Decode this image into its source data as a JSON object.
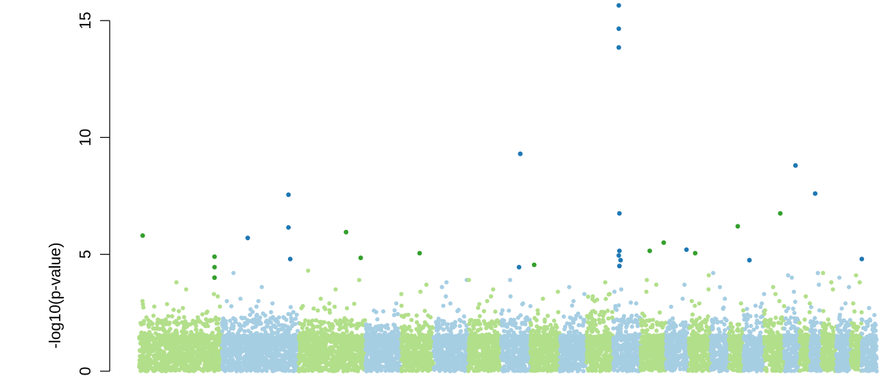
{
  "chart_data": {
    "type": "scatter",
    "title": "",
    "xlabel": "",
    "ylabel": "-log10(p-value)",
    "ylim": [
      0,
      16
    ],
    "y_ticks": [
      0,
      5,
      10,
      15
    ],
    "y_tick_labels": [
      "0",
      "5",
      "10",
      "15"
    ],
    "x_axis_shown": false,
    "colors": {
      "light_green": "#b2df8a",
      "light_blue": "#a6cee3",
      "dark_green": "#33a02c",
      "dark_blue": "#1f78b4"
    },
    "chromosomes": [
      {
        "band": "green",
        "base_max": 2.0,
        "top": [
          3.3,
          3.8,
          3.5,
          3.2,
          3.0
        ]
      },
      {
        "band": "blue",
        "base_max": 2.1,
        "top": [
          3.0,
          3.6,
          4.2,
          2.9,
          3.1
        ]
      },
      {
        "band": "green",
        "base_max": 2.0,
        "top": [
          4.3,
          3.5,
          3.9,
          3.1,
          2.9
        ]
      },
      {
        "band": "blue",
        "base_max": 1.8,
        "top": [
          2.9,
          2.6,
          2.4
        ]
      },
      {
        "band": "green",
        "base_max": 1.8,
        "top": [
          3.7,
          3.3,
          2.8,
          3.4
        ]
      },
      {
        "band": "blue",
        "base_max": 2.0,
        "top": [
          3.9,
          3.6,
          3.2,
          3.8
        ]
      },
      {
        "band": "green",
        "base_max": 2.0,
        "top": [
          3.9,
          3.5,
          3.2,
          3.0
        ]
      },
      {
        "band": "blue",
        "base_max": 2.0,
        "top": [
          3.9,
          3.2,
          2.9
        ]
      },
      {
        "band": "green",
        "base_max": 1.8,
        "top": [
          3.4,
          3.1,
          2.6
        ]
      },
      {
        "band": "blue",
        "base_max": 2.2,
        "top": [
          3.6,
          3.3,
          3.0
        ]
      },
      {
        "band": "green",
        "base_max": 2.4,
        "top": [
          3.8,
          3.3,
          3.0,
          3.2
        ]
      },
      {
        "band": "blue",
        "base_max": 2.1,
        "top": [
          3.5,
          3.4,
          2.9
        ]
      },
      {
        "band": "green",
        "base_max": 2.0,
        "top": [
          3.9,
          3.7,
          3.4
        ]
      },
      {
        "band": "blue",
        "base_max": 1.9,
        "top": [
          3.7,
          3.1
        ]
      },
      {
        "band": "green",
        "base_max": 2.0,
        "top": [
          4.1,
          3.5,
          3.0
        ]
      },
      {
        "band": "blue",
        "base_max": 2.1,
        "top": [
          4.2,
          3.6,
          3.1
        ]
      },
      {
        "band": "green",
        "base_max": 1.8,
        "top": [
          2.9,
          2.6
        ]
      },
      {
        "band": "blue",
        "base_max": 2.2,
        "top": [
          3.3,
          2.9,
          2.8
        ]
      },
      {
        "band": "green",
        "base_max": 2.0,
        "top": [
          3.6,
          3.3,
          3.0
        ]
      },
      {
        "band": "blue",
        "base_max": 2.1,
        "top": [
          4.0,
          4.1,
          3.4
        ]
      },
      {
        "band": "green",
        "base_max": 1.8,
        "top": [
          3.2,
          2.9
        ]
      },
      {
        "band": "blue",
        "base_max": 2.0,
        "top": [
          4.2,
          3.7
        ]
      },
      {
        "band": "green",
        "base_max": 1.9,
        "top": [
          4.2,
          3.8,
          3.5
        ]
      },
      {
        "band": "blue",
        "base_max": 2.0,
        "top": [
          4.0,
          3.6,
          2.9
        ]
      },
      {
        "band": "green",
        "base_max": 1.9,
        "top": [
          4.1,
          3.8,
          2.9
        ]
      },
      {
        "band": "blue",
        "base_max": 2.1,
        "top": [
          2.7,
          2.4
        ]
      }
    ],
    "significant_points": [
      {
        "x": 0.0047,
        "y": 5.8
      },
      {
        "x": 0.1021,
        "y": 4.9
      },
      {
        "x": 0.1021,
        "y": 4.45
      },
      {
        "x": 0.1021,
        "y": 4.0
      },
      {
        "x": 0.1471,
        "y": 5.7
      },
      {
        "x": 0.2023,
        "y": 7.55
      },
      {
        "x": 0.2023,
        "y": 6.15
      },
      {
        "x": 0.2047,
        "y": 4.8
      },
      {
        "x": 0.2804,
        "y": 5.95
      },
      {
        "x": 0.3003,
        "y": 4.85
      },
      {
        "x": 0.3801,
        "y": 5.05
      },
      {
        "x": 0.5165,
        "y": 9.3
      },
      {
        "x": 0.5149,
        "y": 4.45
      },
      {
        "x": 0.5354,
        "y": 4.55
      },
      {
        "x": 0.6501,
        "y": 15.65
      },
      {
        "x": 0.6501,
        "y": 14.65
      },
      {
        "x": 0.6501,
        "y": 13.85
      },
      {
        "x": 0.6509,
        "y": 6.75
      },
      {
        "x": 0.6509,
        "y": 5.15
      },
      {
        "x": 0.6501,
        "y": 4.95
      },
      {
        "x": 0.6525,
        "y": 4.75
      },
      {
        "x": 0.6509,
        "y": 4.5
      },
      {
        "x": 0.692,
        "y": 5.15
      },
      {
        "x": 0.711,
        "y": 5.5
      },
      {
        "x": 0.7418,
        "y": 5.2
      },
      {
        "x": 0.7536,
        "y": 5.05
      },
      {
        "x": 0.8113,
        "y": 6.2
      },
      {
        "x": 0.8271,
        "y": 4.75
      },
      {
        "x": 0.869,
        "y": 6.75
      },
      {
        "x": 0.8896,
        "y": 8.8
      },
      {
        "x": 0.9163,
        "y": 7.6
      },
      {
        "x": 0.9795,
        "y": 4.8
      }
    ]
  }
}
